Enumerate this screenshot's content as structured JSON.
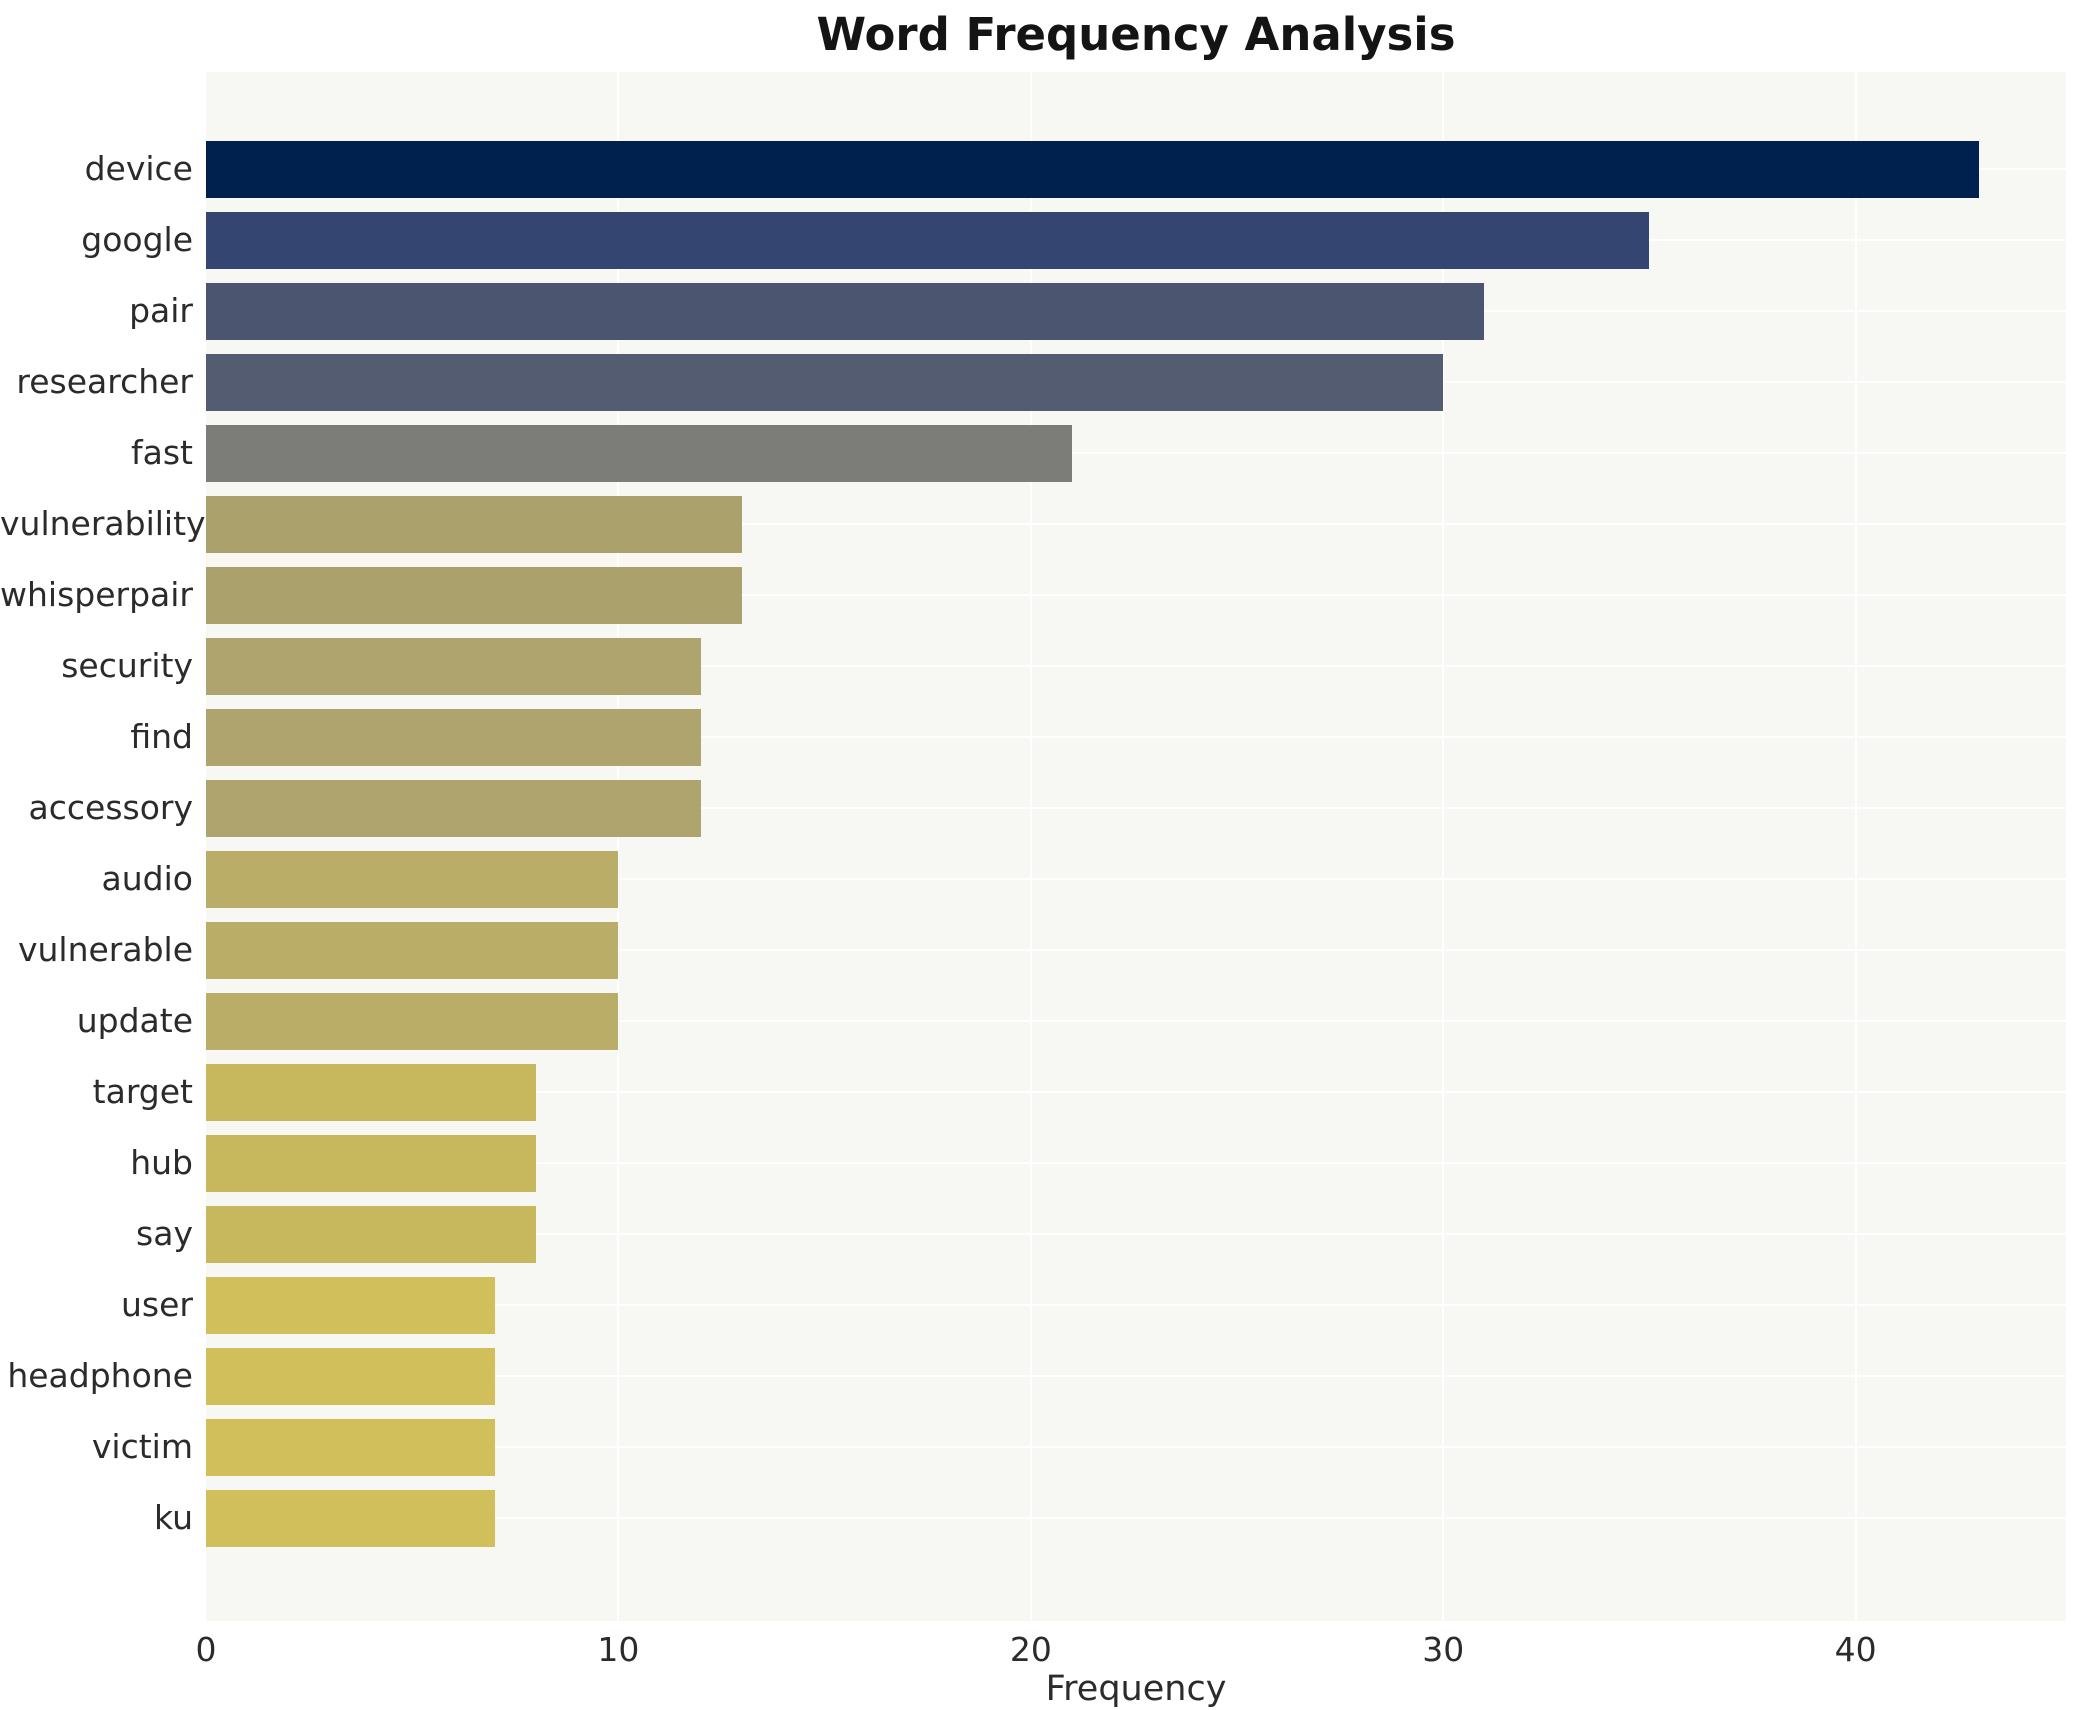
{
  "title": "Word Frequency Analysis",
  "x_axis": {
    "label": "Frequency",
    "ticks": [
      0,
      10,
      20,
      30,
      40
    ],
    "max": 45.1
  },
  "colors": {
    "plot_background": "#f7f7f4",
    "gridline": "#ffffff",
    "tick_text": "#2b2b2b",
    "title_text": "#141414"
  },
  "chart_data": {
    "type": "bar",
    "orientation": "horizontal",
    "title": "Word Frequency Analysis",
    "xlabel": "Frequency",
    "ylabel": "",
    "xlim": [
      0,
      45.1
    ],
    "grid": true,
    "legend": false,
    "categories": [
      "device",
      "google",
      "pair",
      "researcher",
      "fast",
      "vulnerability",
      "whisperpair",
      "security",
      "find",
      "accessory",
      "audio",
      "vulnerable",
      "update",
      "target",
      "hub",
      "say",
      "user",
      "headphone",
      "victim",
      "ku"
    ],
    "values": [
      43,
      35,
      31,
      30,
      21,
      13,
      13,
      12,
      12,
      12,
      10,
      10,
      10,
      8,
      8,
      8,
      7,
      7,
      7,
      7
    ],
    "bar_colors": [
      "#00214e",
      "#334570",
      "#4b556f",
      "#545c72",
      "#7c7c78",
      "#aba16d",
      "#aba16d",
      "#afa46d",
      "#afa46d",
      "#afa46d",
      "#b9ad68",
      "#b9ad68",
      "#b9ad68",
      "#c7b75d",
      "#c7b75d",
      "#c7b75d",
      "#d0bf5a",
      "#d0bf5a",
      "#d0bf5a",
      "#d0bf5a"
    ]
  }
}
